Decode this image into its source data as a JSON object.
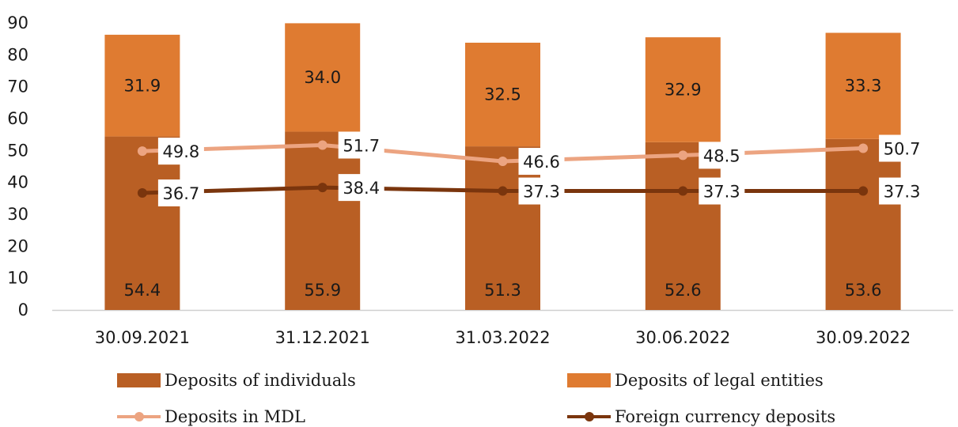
{
  "chart_data": {
    "type": "bar",
    "stacked": true,
    "categories": [
      "30.09.2021",
      "31.12.2021",
      "31.03.2022",
      "30.06.2022",
      "30.09.2022"
    ],
    "ylim": [
      0,
      90
    ],
    "yticks": [
      "0",
      "10",
      "20",
      "30",
      "40",
      "50",
      "60",
      "70",
      "80",
      "90"
    ],
    "grid": false,
    "legend_position": "bottom",
    "series": [
      {
        "name": "Deposits of individuals",
        "kind": "bar",
        "color": "#b95f24",
        "values": [
          54.4,
          55.9,
          51.3,
          52.6,
          53.6
        ],
        "labels": [
          "54.4",
          "55.9",
          "51.3",
          "52.6",
          "53.6"
        ]
      },
      {
        "name": "Deposits of legal entities",
        "kind": "bar",
        "color": "#df7b31",
        "values": [
          31.9,
          34.0,
          32.5,
          32.9,
          33.3
        ],
        "labels": [
          "31.9",
          "34.0",
          "32.5",
          "32.9",
          "33.3"
        ]
      },
      {
        "name": "Deposits in MDL",
        "kind": "line",
        "color": "#eca481",
        "values": [
          49.8,
          51.7,
          46.6,
          48.5,
          50.7
        ],
        "labels": [
          "49.8",
          "51.7",
          "46.6",
          "48.5",
          "50.7"
        ]
      },
      {
        "name": "Foreign currency deposits",
        "kind": "line",
        "color": "#7a350d",
        "values": [
          36.7,
          38.4,
          37.3,
          37.3,
          37.3
        ],
        "labels": [
          "36.7",
          "38.4",
          "37.3",
          "37.3",
          "37.3"
        ]
      }
    ]
  }
}
